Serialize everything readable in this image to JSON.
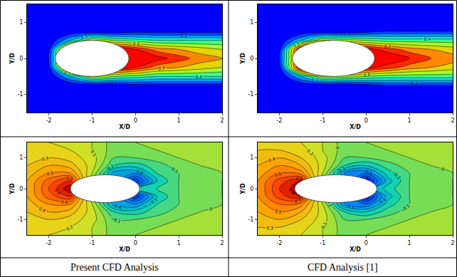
{
  "chart_data": [
    {
      "type": "contour",
      "x_label": "X/D",
      "y_label": "Y/D",
      "xlim": [
        -2.5,
        2
      ],
      "ylim": [
        -1.5,
        1.5
      ],
      "xticks": [
        -2,
        -1,
        0,
        1,
        2
      ],
      "yticks": [
        -1,
        0,
        1
      ],
      "x": [
        -2.5,
        -2,
        -1.5,
        -1,
        -0.5,
        0,
        0.5,
        1,
        1.5,
        2
      ],
      "y": [
        -1.5,
        -1.25,
        -1,
        -0.75,
        -0.5,
        -0.25,
        0,
        0.25,
        0.5,
        0.75,
        1,
        1.25,
        1.5
      ],
      "z": [
        [
          0,
          0,
          0,
          0,
          0,
          0,
          0,
          0,
          0,
          0
        ],
        [
          0,
          0,
          0,
          0,
          0,
          0,
          0,
          0,
          0,
          0
        ],
        [
          0,
          0,
          0,
          0,
          0,
          0,
          0,
          0,
          0,
          0
        ],
        [
          0,
          0,
          0,
          0,
          0,
          0.05,
          0.05,
          0.05,
          0.05,
          0.05
        ],
        [
          0,
          0,
          0.3,
          0.6,
          0.5,
          0.45,
          0.4,
          0.4,
          0.4,
          0.4
        ],
        [
          0,
          0.05,
          1,
          1,
          1,
          0.9,
          0.75,
          0.7,
          0.65,
          0.6
        ],
        [
          0,
          0.1,
          1,
          1,
          1,
          1,
          0.95,
          0.85,
          0.75,
          0.7
        ],
        [
          0,
          0.05,
          1,
          1,
          1,
          0.9,
          0.75,
          0.7,
          0.65,
          0.6
        ],
        [
          0,
          0,
          0.3,
          0.6,
          0.5,
          0.45,
          0.4,
          0.4,
          0.4,
          0.4
        ],
        [
          0,
          0,
          0,
          0,
          0,
          0.05,
          0.05,
          0.05,
          0.05,
          0.05
        ],
        [
          0,
          0,
          0,
          0,
          0,
          0,
          0,
          0,
          0,
          0
        ],
        [
          0,
          0,
          0,
          0,
          0,
          0,
          0,
          0,
          0,
          0
        ],
        [
          0,
          0,
          0,
          0,
          0,
          0,
          0,
          0,
          0,
          0
        ]
      ],
      "zlim": [
        0,
        1
      ],
      "levels": {
        "start": 0.1,
        "end": 0.9,
        "step": 0.1
      },
      "data_labels": true,
      "body": {
        "center": [
          -1.0,
          0
        ],
        "a": 0.85,
        "b": 0.5
      }
    },
    {
      "type": "contour",
      "x_label": "X/D",
      "y_label": "Y/D",
      "xlim": [
        -2.5,
        2
      ],
      "ylim": [
        -1.5,
        1.5
      ],
      "xticks": [
        -2,
        -1,
        0,
        1,
        2
      ],
      "yticks": [
        -1,
        0,
        1
      ],
      "x": [
        -2.5,
        -2,
        -1.5,
        -1,
        -0.5,
        0,
        0.5,
        1,
        1.5,
        2
      ],
      "y": [
        -1.5,
        -1.25,
        -1,
        -0.75,
        -0.5,
        -0.25,
        0,
        0.25,
        0.5,
        0.75,
        1,
        1.25,
        1.5
      ],
      "z": [
        [
          0,
          0,
          0,
          0,
          0,
          0,
          0,
          0,
          0,
          0
        ],
        [
          0,
          0,
          0,
          0,
          0,
          0,
          0,
          0,
          0,
          0
        ],
        [
          0,
          0,
          0,
          0,
          0,
          0,
          0,
          0,
          0,
          0
        ],
        [
          0,
          0,
          0,
          0,
          0,
          0.05,
          0.1,
          0.1,
          0.1,
          0.1
        ],
        [
          0,
          0,
          0.3,
          0.6,
          0.55,
          0.5,
          0.45,
          0.45,
          0.45,
          0.45
        ],
        [
          0,
          0.05,
          1,
          1,
          1,
          0.95,
          0.85,
          0.75,
          0.7,
          0.65
        ],
        [
          0,
          0.1,
          1,
          1,
          1,
          1,
          1,
          0.9,
          0.8,
          0.75
        ],
        [
          0,
          0.05,
          1,
          1,
          1,
          0.95,
          0.85,
          0.75,
          0.7,
          0.65
        ],
        [
          0,
          0,
          0.3,
          0.6,
          0.55,
          0.5,
          0.45,
          0.45,
          0.45,
          0.45
        ],
        [
          0,
          0,
          0,
          0,
          0,
          0.05,
          0.1,
          0.1,
          0.1,
          0.1
        ],
        [
          0,
          0,
          0,
          0,
          0,
          0,
          0,
          0,
          0,
          0
        ],
        [
          0,
          0,
          0,
          0,
          0,
          0,
          0,
          0,
          0,
          0
        ],
        [
          0,
          0,
          0,
          0,
          0,
          0,
          0,
          0,
          0,
          0
        ]
      ],
      "zlim": [
        0,
        1
      ],
      "levels": {
        "start": 0.1,
        "end": 0.9,
        "step": 0.1
      },
      "data_labels": true,
      "body": {
        "center": [
          -0.75,
          0
        ],
        "a": 0.95,
        "b": 0.5
      }
    },
    {
      "type": "contour",
      "x_label": "X/D",
      "y_label": "Y/D",
      "xlim": [
        -2.5,
        2
      ],
      "ylim": [
        -1.5,
        1.5
      ],
      "xticks": [
        -2,
        -1,
        0,
        1,
        2
      ],
      "yticks": [
        -1,
        0,
        1
      ],
      "x": [
        -2.5,
        -2,
        -1.5,
        -1,
        -0.5,
        0,
        0.5,
        1,
        1.5,
        2
      ],
      "y": [
        -1.5,
        -1.25,
        -1,
        -0.75,
        -0.5,
        -0.25,
        0,
        0.25,
        0.5,
        0.75,
        1,
        1.25,
        1.5
      ],
      "z": [
        [
          0.2,
          0.2,
          0.15,
          0.1,
          -0.05,
          0,
          0,
          0,
          0,
          0
        ],
        [
          0.2,
          0.25,
          0.2,
          0.1,
          -0.05,
          -0.05,
          0,
          0,
          0,
          0
        ],
        [
          0.25,
          0.3,
          0.25,
          0.15,
          -0.1,
          -0.1,
          -0.05,
          0,
          0,
          0
        ],
        [
          0.3,
          0.4,
          0.35,
          0.15,
          -0.2,
          -0.25,
          -0.15,
          -0.05,
          0,
          0
        ],
        [
          0.35,
          0.5,
          0.5,
          0.1,
          -0.45,
          -0.5,
          -0.2,
          -0.1,
          -0.05,
          0
        ],
        [
          0.4,
          0.65,
          0.8,
          0,
          -0.4,
          -0.8,
          -0.3,
          -0.1,
          -0.05,
          0
        ],
        [
          0.4,
          0.7,
          1,
          0,
          -0.4,
          -0.3,
          -0.2,
          -0.1,
          -0.05,
          0
        ],
        [
          0.4,
          0.65,
          0.8,
          0,
          -0.4,
          -0.8,
          -0.3,
          -0.1,
          -0.05,
          0
        ],
        [
          0.35,
          0.5,
          0.5,
          0.1,
          -0.45,
          -0.5,
          -0.2,
          -0.1,
          -0.05,
          0
        ],
        [
          0.3,
          0.4,
          0.35,
          0.15,
          -0.2,
          -0.25,
          -0.15,
          -0.05,
          0,
          0
        ],
        [
          0.25,
          0.3,
          0.25,
          0.15,
          -0.1,
          -0.1,
          -0.05,
          0,
          0,
          0
        ],
        [
          0.2,
          0.25,
          0.2,
          0.1,
          -0.05,
          -0.05,
          0,
          0,
          0,
          0
        ],
        [
          0.2,
          0.2,
          0.15,
          0.1,
          -0.05,
          0,
          0,
          0,
          0,
          0
        ]
      ],
      "zlim": [
        -1,
        1
      ],
      "levels": {
        "start": -0.9,
        "end": 0.9,
        "step": 0.1
      },
      "data_labels": true,
      "body": {
        "center": [
          -0.7,
          0
        ],
        "a": 0.8,
        "b": 0.45
      }
    },
    {
      "type": "contour",
      "x_label": "X/D",
      "y_label": "Y/D",
      "xlim": [
        -2.5,
        2
      ],
      "ylim": [
        -1.5,
        1.5
      ],
      "xticks": [
        -2,
        -1,
        0,
        1,
        2
      ],
      "yticks": [
        -1,
        0,
        1
      ],
      "x": [
        -2.5,
        -2,
        -1.5,
        -1,
        -0.5,
        0,
        0.5,
        1,
        1.5,
        2
      ],
      "y": [
        -1.5,
        -1.25,
        -1,
        -0.75,
        -0.5,
        -0.25,
        0,
        0.25,
        0.5,
        0.75,
        1,
        1.25,
        1.5
      ],
      "z": [
        [
          0.25,
          0.25,
          0.2,
          0.1,
          -0.05,
          0,
          0,
          0,
          0,
          0
        ],
        [
          0.3,
          0.3,
          0.25,
          0.1,
          -0.05,
          -0.05,
          0,
          0,
          0,
          0
        ],
        [
          0.35,
          0.4,
          0.3,
          0.15,
          -0.1,
          -0.1,
          -0.05,
          0,
          0,
          0
        ],
        [
          0.4,
          0.5,
          0.4,
          0.15,
          -0.2,
          -0.3,
          -0.15,
          -0.05,
          0,
          0
        ],
        [
          0.45,
          0.6,
          0.55,
          0.1,
          -0.5,
          -0.6,
          -0.25,
          -0.1,
          -0.05,
          0
        ],
        [
          0.5,
          0.75,
          0.9,
          0,
          -0.4,
          -0.9,
          -0.35,
          -0.1,
          -0.05,
          0
        ],
        [
          0.5,
          0.8,
          1,
          0,
          -0.4,
          -0.5,
          -0.25,
          -0.1,
          -0.05,
          0
        ],
        [
          0.5,
          0.75,
          0.9,
          0,
          -0.4,
          -0.9,
          -0.35,
          -0.1,
          -0.05,
          0
        ],
        [
          0.45,
          0.6,
          0.55,
          0.1,
          -0.5,
          -0.6,
          -0.25,
          -0.1,
          -0.05,
          0
        ],
        [
          0.4,
          0.5,
          0.4,
          0.15,
          -0.2,
          -0.3,
          -0.15,
          -0.05,
          0,
          0
        ],
        [
          0.35,
          0.4,
          0.3,
          0.15,
          -0.1,
          -0.1,
          -0.05,
          0,
          0,
          0
        ],
        [
          0.3,
          0.3,
          0.25,
          0.1,
          -0.05,
          -0.05,
          0,
          0,
          0,
          0
        ],
        [
          0.25,
          0.25,
          0.2,
          0.1,
          -0.05,
          0,
          0,
          0,
          0,
          0
        ]
      ],
      "zlim": [
        -1,
        1
      ],
      "levels": {
        "start": -0.9,
        "end": 0.9,
        "step": 0.1
      },
      "data_labels": true,
      "body": {
        "center": [
          -0.7,
          0
        ],
        "a": 0.95,
        "b": 0.45
      }
    }
  ],
  "captions": [
    "Present CFD Analysis",
    "CFD Analysis [1]"
  ]
}
